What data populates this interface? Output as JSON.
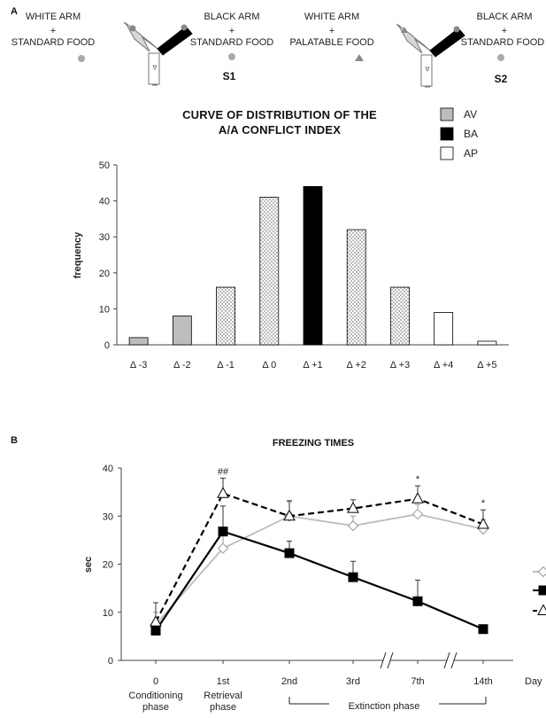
{
  "panel_a": {
    "label": "A",
    "s1": {
      "left_lines": [
        "WHITE ARM",
        "+",
        "STANDARD FOOD"
      ],
      "right_lines": [
        "BLACK ARM",
        "+",
        "STANDARD FOOD"
      ],
      "session": "S1"
    },
    "s2": {
      "left_lines": [
        "WHITE ARM",
        "+",
        "PALATABLE FOOD"
      ],
      "right_lines": [
        "BLACK ARM",
        "+",
        "STANDARD FOOD"
      ],
      "session": "S2"
    }
  },
  "panel_b": {
    "label": "B"
  },
  "chart_data": [
    {
      "type": "bar",
      "title_lines": [
        "CURVE OF DISTRIBUTION OF THE",
        "A/A CONFLICT INDEX"
      ],
      "xlabel": "",
      "ylabel": "frequency",
      "ylim": [
        0,
        50
      ],
      "yticks": [
        "0",
        "10",
        "20",
        "30",
        "40",
        "50"
      ],
      "categories": [
        "Δ -3",
        "Δ -2",
        "Δ -1",
        "Δ 0",
        "Δ +1",
        "Δ +2",
        "Δ +3",
        "Δ +4",
        "Δ +5"
      ],
      "values": [
        2,
        8,
        16,
        41,
        44,
        32,
        16,
        9,
        1
      ],
      "bar_classes": [
        "AV",
        "AV",
        "dotted",
        "dotted",
        "BA",
        "dotted",
        "dotted",
        "AP",
        "AP"
      ],
      "legend": [
        {
          "label": "AV",
          "color": "#bdbdbd"
        },
        {
          "label": "BA",
          "color": "#000000"
        },
        {
          "label": "AP",
          "color": "#ffffff"
        }
      ],
      "legend_position": "top-right",
      "grid": false
    },
    {
      "type": "line",
      "title": "FREEZING TIMES",
      "ylabel": "sec",
      "ylim": [
        0,
        40
      ],
      "yticks": [
        "0",
        "10",
        "20",
        "30",
        "40"
      ],
      "x_tick_labels": [
        "0",
        "1st",
        "2nd",
        "3rd",
        "7th",
        "14th"
      ],
      "x_sub_labels": [
        [
          "Conditioning",
          "phase"
        ],
        [
          "Retrieval",
          "phase"
        ],
        [],
        [],
        [],
        []
      ],
      "x_axis_unit": "Day",
      "bracket_label": "Extinction phase",
      "series": [
        {
          "marker": "diamond",
          "color": "#bcbcbc",
          "dashed": false,
          "values": [
            7.5,
            23.3,
            30.0,
            28.0,
            30.4,
            27.3
          ],
          "errors": [
            2.5,
            3.5,
            3.0,
            2.0,
            2.0,
            2.0
          ]
        },
        {
          "marker": "square",
          "color": "#000000",
          "dashed": false,
          "values": [
            6.2,
            26.8,
            22.3,
            17.3,
            12.3,
            6.5
          ],
          "errors": [
            1.0,
            5.3,
            2.5,
            3.3,
            4.4,
            0.6
          ]
        },
        {
          "marker": "triangle",
          "color": "#000000",
          "dashed": true,
          "values": [
            8.0,
            34.7,
            30.0,
            31.6,
            33.6,
            28.3
          ],
          "errors": [
            4.0,
            3.2,
            3.2,
            1.8,
            2.7,
            3.0
          ]
        }
      ],
      "annotations": [
        {
          "text": "##",
          "x_index": 1
        },
        {
          "text": "*",
          "x_index": 4
        },
        {
          "text": "*",
          "x_index": 5
        }
      ],
      "legend_position": "right",
      "grid": false
    }
  ]
}
